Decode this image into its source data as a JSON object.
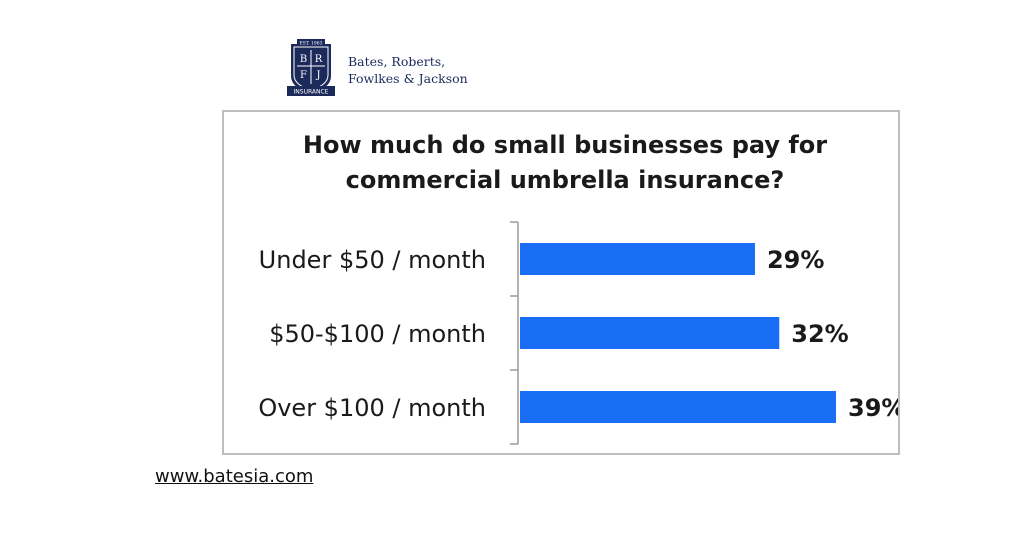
{
  "brand": {
    "crest_icon": "insurance-crest-icon",
    "crest_est": "EST. 1963",
    "crest_letters": [
      "B",
      "R",
      "F",
      "J"
    ],
    "crest_ribbon": "INSURANCE",
    "name_lines": [
      "Bates, Roberts,",
      "Fowlkes & Jackson"
    ],
    "color": "#1b2a5a"
  },
  "chart_data": {
    "type": "bar",
    "orientation": "horizontal",
    "title_lines": [
      "How much do small businesses pay for",
      "commercial umbrella insurance?"
    ],
    "categories": [
      "Under $50 / month",
      "$50-$100 / month",
      "Over $100 / month"
    ],
    "values": [
      29,
      32,
      39
    ],
    "value_labels": [
      "29%",
      "32%",
      "39%"
    ],
    "bar_color": "#1a6ef5",
    "xlim": [
      0,
      39
    ],
    "grid": false,
    "legend": "none"
  },
  "footer": {
    "website": "www.batesia.com"
  }
}
